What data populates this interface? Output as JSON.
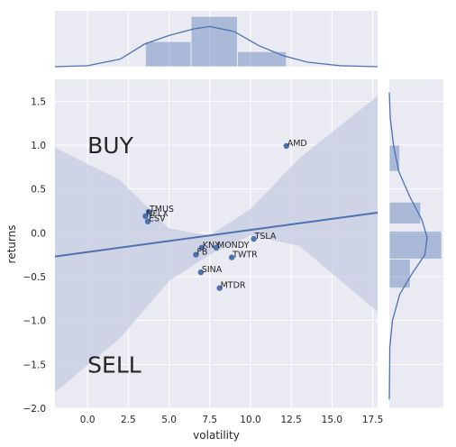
{
  "chart_data": {
    "type": "scatter",
    "subtype": "jointplot-with-regression",
    "xlabel": "volatility",
    "ylabel": "returns",
    "xlim": [
      -2,
      17.8
    ],
    "ylim": [
      -2.0,
      1.75
    ],
    "x_ticks": [
      "0.0",
      "2.5",
      "5.0",
      "7.5",
      "10.0",
      "12.5",
      "15.0",
      "17.5"
    ],
    "y_ticks": [
      "1.5",
      "1.0",
      "0.5",
      "0.0",
      "−0.5",
      "−1.0",
      "−1.5",
      "−2.0"
    ],
    "grid": true,
    "colors": {
      "point": "#4c72b0",
      "background": "#eaeaf2",
      "band": "#c4cbe2",
      "hist": "#4c72b0"
    },
    "points": [
      {
        "label": "AMD",
        "x": 12.2,
        "y": 0.99
      },
      {
        "label": "TMUS",
        "x": 3.75,
        "y": 0.24
      },
      {
        "label": "NFLX",
        "x": 3.55,
        "y": 0.19
      },
      {
        "label": "ESV",
        "x": 3.7,
        "y": 0.13
      },
      {
        "label": "TSLA",
        "x": 10.2,
        "y": -0.07
      },
      {
        "label": "KNX",
        "x": 7.0,
        "y": -0.17
      },
      {
        "label": "MONDY",
        "x": 7.9,
        "y": -0.17
      },
      {
        "label": "FB",
        "x": 6.65,
        "y": -0.25
      },
      {
        "label": "TWTR",
        "x": 8.85,
        "y": -0.28
      },
      {
        "label": "SINA",
        "x": 6.95,
        "y": -0.45
      },
      {
        "label": "MTDR",
        "x": 8.1,
        "y": -0.63
      }
    ],
    "regression": {
      "x0": -2,
      "y0": -0.27,
      "x1": 17.8,
      "y1": 0.23
    },
    "confidence_band": [
      {
        "x": -2,
        "lo": -1.82,
        "hi": 0.97
      },
      {
        "x": 2,
        "lo": -1.2,
        "hi": 0.6
      },
      {
        "x": 5,
        "lo": -0.55,
        "hi": 0.05
      },
      {
        "x": 7.5,
        "lo": -0.25,
        "hi": -0.03
      },
      {
        "x": 10,
        "lo": -0.03,
        "hi": 0.27
      },
      {
        "x": 13,
        "lo": -0.15,
        "hi": 0.85
      },
      {
        "x": 17.8,
        "lo": -0.9,
        "hi": 1.56
      }
    ],
    "x_histogram": {
      "bins": [
        [
          3.55,
          6.35,
          0.5
        ],
        [
          6.35,
          9.2,
          1.0
        ],
        [
          9.2,
          12.2,
          0.3
        ]
      ],
      "kde": [
        [
          -2,
          0.0
        ],
        [
          0,
          0.02
        ],
        [
          2,
          0.15
        ],
        [
          3.5,
          0.45
        ],
        [
          5,
          0.62
        ],
        [
          6.5,
          0.75
        ],
        [
          7.5,
          0.8
        ],
        [
          9,
          0.7
        ],
        [
          10.5,
          0.42
        ],
        [
          12,
          0.22
        ],
        [
          13.5,
          0.09
        ],
        [
          15.5,
          0.02
        ],
        [
          17.8,
          0.0
        ]
      ]
    },
    "y_histogram": {
      "bins": [
        [
          0.7,
          1.0,
          0.2
        ],
        [
          0.1,
          0.35,
          0.6
        ],
        [
          -0.3,
          0.02,
          1.0
        ],
        [
          -0.63,
          -0.3,
          0.4
        ]
      ],
      "kde": [
        [
          1.6,
          0.0
        ],
        [
          1.3,
          0.02
        ],
        [
          1.0,
          0.08
        ],
        [
          0.7,
          0.18
        ],
        [
          0.4,
          0.4
        ],
        [
          0.15,
          0.62
        ],
        [
          -0.05,
          0.72
        ],
        [
          -0.25,
          0.68
        ],
        [
          -0.45,
          0.45
        ],
        [
          -0.7,
          0.2
        ],
        [
          -1.0,
          0.06
        ],
        [
          -1.3,
          0.01
        ],
        [
          -1.9,
          0.0
        ]
      ]
    },
    "annotations": [
      {
        "text": "BUY",
        "x": 0.0,
        "y": 1.0
      },
      {
        "text": "SELL",
        "x": 0.0,
        "y": -1.5
      }
    ]
  }
}
